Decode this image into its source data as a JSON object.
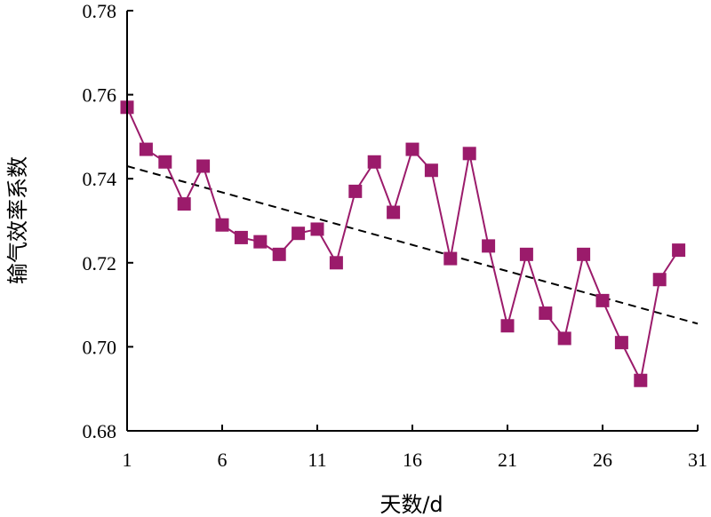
{
  "chart_data": {
    "type": "line",
    "title": "",
    "xlabel": "天数/d",
    "ylabel": "输气效率系数",
    "xlim": [
      1,
      31
    ],
    "ylim": [
      0.68,
      0.78
    ],
    "x_ticks": [
      1,
      6,
      11,
      16,
      21,
      26,
      31
    ],
    "y_ticks": [
      "0.68",
      "0.70",
      "0.72",
      "0.74",
      "0.76",
      "0.78"
    ],
    "grid": false,
    "legend": "none",
    "series": [
      {
        "color": "#9b1b6b",
        "marker": "square",
        "x": [
          1,
          2,
          3,
          4,
          5,
          6,
          7,
          8,
          9,
          10,
          11,
          12,
          13,
          14,
          15,
          16,
          17,
          18,
          19,
          20,
          21,
          22,
          23,
          24,
          25,
          26,
          27,
          28,
          29,
          30
        ],
        "y": [
          0.757,
          0.747,
          0.744,
          0.734,
          0.743,
          0.729,
          0.726,
          0.725,
          0.722,
          0.727,
          0.728,
          0.72,
          0.737,
          0.744,
          0.732,
          0.747,
          0.742,
          0.721,
          0.746,
          0.724,
          0.705,
          0.722,
          0.708,
          0.702,
          0.722,
          0.711,
          0.701,
          0.692,
          0.716,
          0.723
        ]
      }
    ],
    "trendline": {
      "style": "dashed",
      "color": "#000000",
      "x": [
        1,
        31
      ],
      "y": [
        0.743,
        0.7055
      ]
    }
  }
}
